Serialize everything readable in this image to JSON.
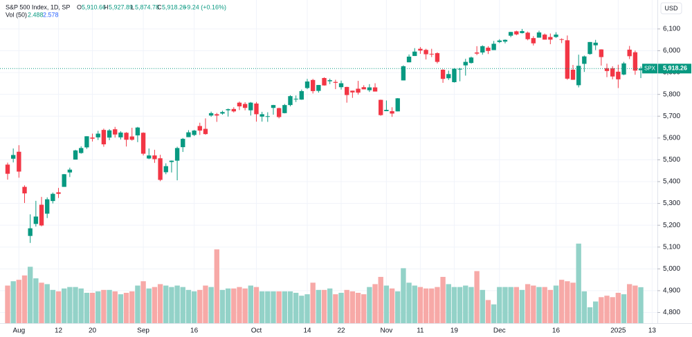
{
  "header": {
    "title": "S&P 500 Index, 1D, SP",
    "open_label": "O",
    "open": "5,910.66",
    "high_label": "H",
    "high": "5,927.89",
    "low_label": "L",
    "low": "5,874.78",
    "close_label": "C",
    "close": "5,918.26",
    "change": "+9.24 (+0.16%)",
    "volume_title": "Vol (50)",
    "volume": "2.488",
    "volume_ma": "2.578",
    "currency": "USD",
    "symbol": "SPX",
    "last_price": "5,918.26"
  },
  "chart_data": {
    "type": "candlestick",
    "up_color": "#089981",
    "down_color": "#f23645",
    "volume_up_color": "#93d2c8",
    "volume_down_color": "#f7a9a7",
    "grid": true,
    "ylim": [
      4751,
      6144
    ],
    "yticks": [
      {
        "value": 4800,
        "label": "4,800"
      },
      {
        "value": 4900,
        "label": "4,900"
      },
      {
        "value": 5000,
        "label": "5,000"
      },
      {
        "value": 5100,
        "label": "5,100"
      },
      {
        "value": 5200,
        "label": "5,200"
      },
      {
        "value": 5300,
        "label": "5,300"
      },
      {
        "value": 5400,
        "label": "5,400"
      },
      {
        "value": 5500,
        "label": "5,500"
      },
      {
        "value": 5600,
        "label": "5,600"
      },
      {
        "value": 5700,
        "label": "5,700"
      },
      {
        "value": 5800,
        "label": "5,800"
      },
      {
        "value": 5900,
        "label": "5,900"
      },
      {
        "value": 6000,
        "label": "6,000"
      },
      {
        "value": 6100,
        "label": "6,100"
      }
    ],
    "y2lim": [
      0,
      21
    ],
    "xticks": [
      {
        "value": 2,
        "label": "Aug"
      },
      {
        "value": 9,
        "label": "12"
      },
      {
        "value": 15,
        "label": "20"
      },
      {
        "value": 24,
        "label": "Sep"
      },
      {
        "value": 33,
        "label": "16"
      },
      {
        "value": 44,
        "label": "Oct"
      },
      {
        "value": 53,
        "label": "14"
      },
      {
        "value": 59,
        "label": "22"
      },
      {
        "value": 67,
        "label": "Nov"
      },
      {
        "value": 73,
        "label": "11"
      },
      {
        "value": 79,
        "label": "19"
      },
      {
        "value": 87,
        "label": "Dec"
      },
      {
        "value": 97,
        "label": "16"
      },
      {
        "value": 108,
        "label": "2025"
      },
      {
        "value": 114,
        "label": "13"
      }
    ],
    "ohlc": [
      [
        5478,
        5487,
        5409,
        5436
      ],
      [
        5505,
        5552,
        5488,
        5522
      ],
      [
        5537,
        5567,
        5418,
        5446
      ],
      [
        5376,
        5383,
        5302,
        5346
      ],
      [
        5151,
        5250,
        5119,
        5186
      ],
      [
        5206,
        5312,
        5194,
        5240
      ],
      [
        5294,
        5330,
        5195,
        5199
      ],
      [
        5253,
        5328,
        5233,
        5319
      ],
      [
        5311,
        5350,
        5300,
        5344
      ],
      [
        5351,
        5371,
        5325,
        5344
      ],
      [
        5376,
        5435,
        5376,
        5434
      ],
      [
        5442,
        5464,
        5421,
        5455
      ],
      [
        5501,
        5546,
        5501,
        5543
      ],
      [
        5531,
        5562,
        5528,
        5554
      ],
      [
        5557,
        5608,
        5550,
        5608
      ],
      [
        5602,
        5620,
        5584,
        5597
      ],
      [
        5603,
        5633,
        5591,
        5620
      ],
      [
        5637,
        5643,
        5560,
        5571
      ],
      [
        5602,
        5641,
        5590,
        5635
      ],
      [
        5640,
        5651,
        5602,
        5616
      ],
      [
        5603,
        5631,
        5593,
        5625
      ],
      [
        5624,
        5627,
        5561,
        5592
      ],
      [
        5607,
        5647,
        5588,
        5592
      ],
      [
        5612,
        5651,
        5581,
        5648
      ],
      [
        5624,
        5626,
        5520,
        5528
      ],
      [
        5506,
        5552,
        5503,
        5520
      ],
      [
        5520,
        5546,
        5486,
        5503
      ],
      [
        5507,
        5523,
        5402,
        5408
      ],
      [
        5443,
        5484,
        5434,
        5471
      ],
      [
        5490,
        5497,
        5442,
        5496
      ],
      [
        5496,
        5560,
        5406,
        5554
      ],
      [
        5558,
        5600,
        5536,
        5596
      ],
      [
        5604,
        5636,
        5604,
        5626
      ],
      [
        5614,
        5637,
        5609,
        5634
      ],
      [
        5655,
        5670,
        5614,
        5634
      ],
      [
        5642,
        5690,
        5615,
        5618
      ],
      [
        5703,
        5721,
        5697,
        5714
      ],
      [
        5709,
        5715,
        5674,
        5703
      ],
      [
        5712,
        5725,
        5707,
        5719
      ],
      [
        5727,
        5735,
        5698,
        5732
      ],
      [
        5733,
        5741,
        5717,
        5722
      ],
      [
        5762,
        5767,
        5728,
        5745
      ],
      [
        5756,
        5764,
        5727,
        5738
      ],
      [
        5727,
        5765,
        5703,
        5762
      ],
      [
        5758,
        5765,
        5675,
        5709
      ],
      [
        5698,
        5720,
        5675,
        5709
      ],
      [
        5698,
        5718,
        5674,
        5700
      ],
      [
        5738,
        5752,
        5707,
        5751
      ],
      [
        5737,
        5739,
        5690,
        5696
      ],
      [
        5714,
        5756,
        5713,
        5751
      ],
      [
        5751,
        5796,
        5745,
        5792
      ],
      [
        5778,
        5795,
        5765,
        5780
      ],
      [
        5776,
        5822,
        5775,
        5815
      ],
      [
        5829,
        5871,
        5824,
        5859
      ],
      [
        5866,
        5871,
        5804,
        5815
      ],
      [
        5816,
        5843,
        5808,
        5843
      ],
      [
        5875,
        5878,
        5840,
        5841
      ],
      [
        5860,
        5872,
        5847,
        5865
      ],
      [
        5857,
        5867,
        5824,
        5853
      ],
      [
        5833,
        5863,
        5822,
        5851
      ],
      [
        5834,
        5835,
        5762,
        5797
      ],
      [
        5817,
        5817,
        5784,
        5809
      ],
      [
        5826,
        5862,
        5799,
        5808
      ],
      [
        5833,
        5842,
        5823,
        5823
      ],
      [
        5819,
        5847,
        5811,
        5832
      ],
      [
        5832,
        5851,
        5813,
        5813
      ],
      [
        5775,
        5776,
        5702,
        5705
      ],
      [
        5723,
        5772,
        5723,
        5729
      ],
      [
        5723,
        5741,
        5697,
        5712
      ],
      [
        5722,
        5783,
        5722,
        5782
      ],
      [
        5864,
        5933,
        5864,
        5929
      ],
      [
        5947,
        5983,
        5947,
        5973
      ],
      [
        5976,
        6012,
        5976,
        5996
      ],
      [
        6009,
        6017,
        5986,
        6001
      ],
      [
        6004,
        6009,
        5960,
        5984
      ],
      [
        5986,
        6009,
        5971,
        5985
      ],
      [
        5989,
        5993,
        5942,
        5949
      ],
      [
        5913,
        5915,
        5853,
        5871
      ],
      [
        5874,
        5909,
        5866,
        5893
      ],
      [
        5856,
        5920,
        5854,
        5917
      ],
      [
        5917,
        5921,
        5860,
        5917
      ],
      [
        5933,
        5963,
        5886,
        5949
      ],
      [
        5944,
        5973,
        5941,
        5969
      ],
      [
        5992,
        6021,
        5980,
        5987
      ],
      [
        5992,
        6025,
        5982,
        6021
      ],
      [
        6014,
        6021,
        5985,
        5999
      ],
      [
        6003,
        6045,
        6003,
        6032
      ],
      [
        6040,
        6053,
        6035,
        6047
      ],
      [
        6042,
        6052,
        6034,
        6050
      ],
      [
        6069,
        6087,
        6062,
        6086
      ],
      [
        6089,
        6092,
        6071,
        6075
      ],
      [
        6081,
        6100,
        6079,
        6090
      ],
      [
        6083,
        6088,
        6048,
        6053
      ],
      [
        6058,
        6067,
        6024,
        6034
      ],
      [
        6060,
        6092,
        6060,
        6084
      ],
      [
        6074,
        6079,
        6051,
        6051
      ],
      [
        6063,
        6079,
        6030,
        6051
      ],
      [
        6063,
        6085,
        6059,
        6074
      ],
      [
        6053,
        6057,
        6035,
        6051
      ],
      [
        6048,
        6070,
        5867,
        5872
      ],
      [
        5913,
        5935,
        5866,
        5867
      ],
      [
        5842,
        5982,
        5832,
        5931
      ],
      [
        5940,
        5978,
        5903,
        5974
      ],
      [
        5985,
        6040,
        5982,
        6040
      ],
      [
        6025,
        6050,
        6003,
        6037
      ],
      [
        6006,
        6007,
        5932,
        5971
      ],
      [
        5920,
        5941,
        5879,
        5907
      ],
      [
        5920,
        5929,
        5869,
        5882
      ],
      [
        5904,
        5936,
        5829,
        5869
      ],
      [
        5891,
        5949,
        5888,
        5942
      ],
      [
        6005,
        6022,
        5962,
        5975
      ],
      [
        5993,
        6001,
        5890,
        5909
      ],
      [
        5910.66,
        5927.89,
        5874.78,
        5918.26
      ]
    ],
    "volume": [
      2.6,
      2.9,
      3.0,
      3.3,
      3.9,
      3.1,
      2.8,
      2.7,
      2.3,
      2.2,
      2.4,
      2.5,
      2.5,
      2.4,
      2.1,
      2.1,
      2.2,
      2.3,
      2.3,
      2.2,
      2.0,
      2.1,
      2.2,
      2.6,
      2.9,
      2.4,
      2.5,
      2.7,
      2.6,
      2.5,
      2.6,
      2.5,
      2.3,
      2.2,
      2.3,
      2.6,
      2.5,
      5.1,
      2.3,
      2.4,
      2.4,
      2.5,
      2.4,
      2.6,
      2.5,
      2.2,
      2.2,
      2.2,
      2.2,
      2.2,
      2.2,
      2.1,
      1.9,
      2.0,
      2.8,
      2.3,
      2.3,
      2.4,
      2.0,
      2.1,
      2.3,
      2.2,
      2.1,
      2.0,
      2.5,
      2.7,
      3.2,
      2.6,
      2.4,
      2.2,
      3.8,
      2.8,
      2.6,
      2.5,
      2.4,
      2.4,
      2.5,
      3.2,
      2.7,
      2.5,
      2.5,
      2.6,
      2.5,
      3.6,
      2.3,
      1.6,
      1.3,
      2.5,
      2.5,
      2.5,
      2.5,
      2.3,
      2.7,
      2.6,
      2.5,
      2.5,
      2.3,
      2.6,
      3.0,
      2.9,
      2.8,
      5.5,
      2.2,
      1.1,
      1.5,
      1.8,
      1.9,
      1.8,
      2.1,
      2.0,
      2.7,
      2.6,
      2.488
    ]
  }
}
